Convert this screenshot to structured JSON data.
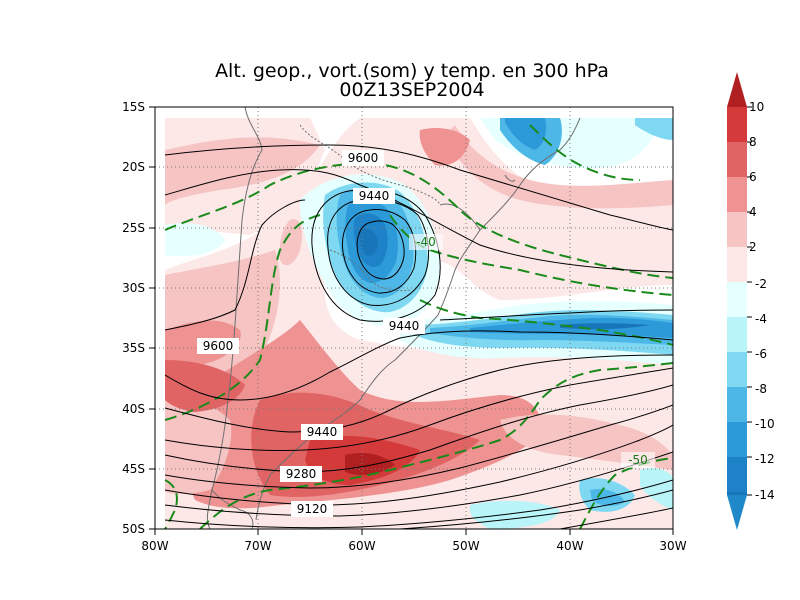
{
  "title": {
    "line1": "Alt. geop., vort.(som) y temp. en 300 hPa",
    "line2": "00Z13SEP2004"
  },
  "axes": {
    "lon_ticks": [
      "80W",
      "70W",
      "60W",
      "50W",
      "40W",
      "30W"
    ],
    "lat_ticks": [
      "15S",
      "20S",
      "25S",
      "30S",
      "35S",
      "40S",
      "45S",
      "50S"
    ]
  },
  "colorbar": {
    "labels": [
      "10",
      "8",
      "6",
      "4",
      "2",
      "-2",
      "-4",
      "-6",
      "-8",
      "-10",
      "-12",
      "-14"
    ],
    "colors": {
      "top_tip": "#b02020",
      "c8_10": "#d43a3a",
      "c6_8": "#e06464",
      "c4_6": "#ee9292",
      "c2_4": "#f7c4c4",
      "c0_2": "#fde8e8",
      "cm2_0": "#e6ffff",
      "cm4_m2": "#b8f4f8",
      "cm6_m4": "#7fd8f2",
      "cm8_m6": "#4db8e8",
      "cm10_m8": "#2c9ad8",
      "cm12_m10": "#1e82c8",
      "cm14_m12": "#1875b8",
      "bottom_tip": "#1e88c8"
    }
  },
  "contour_labels": {
    "geopotential": [
      "9600",
      "9440",
      "9440",
      "9600",
      "9440",
      "9280",
      "9120"
    ],
    "temperature": [
      "-40",
      "-50"
    ]
  },
  "colors": {
    "geopotential_line": "#000000",
    "temperature_line": "#1a8a1a",
    "coastline": "#6e6e6e",
    "grid": "#7a7a7a"
  }
}
